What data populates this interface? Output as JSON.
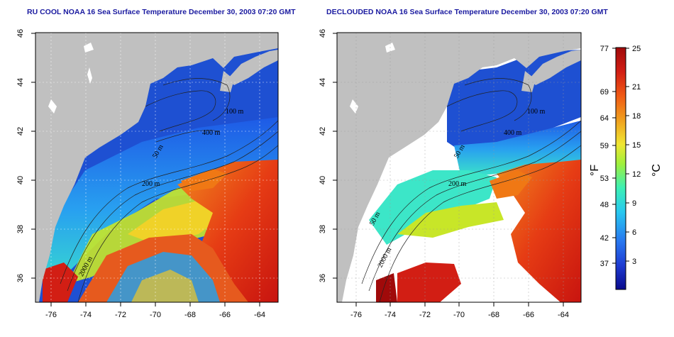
{
  "maps": [
    {
      "title": "RU COOL NOAA 16 Sea Surface Temperature December 30, 2003 07:20 GMT",
      "lat_ticks": [
        "36",
        "38",
        "40",
        "42",
        "44",
        "46"
      ],
      "lon_ticks": [
        "-76",
        "-74",
        "-72",
        "-70",
        "-68",
        "-66",
        "-64"
      ],
      "contour_labels": [
        "100 m",
        "400 m",
        "50 m",
        "200 m",
        "2000 m"
      ]
    },
    {
      "title": "DECLOUDED NOAA 16 Sea Surface Temperature December 30, 2003 07:20 GMT",
      "lat_ticks": [
        "36",
        "38",
        "40",
        "42",
        "44",
        "46"
      ],
      "lon_ticks": [
        "-76",
        "-74",
        "-72",
        "-70",
        "-68",
        "-66",
        "-64"
      ],
      "contour_labels": [
        "100 m",
        "400 m",
        "50 m",
        "200 m",
        "50 m",
        "2000 m"
      ]
    }
  ],
  "colorbar": {
    "fahrenheit_ticks": [
      "77",
      "69",
      "64",
      "59",
      "53",
      "48",
      "42",
      "37"
    ],
    "celsius_ticks": [
      "25",
      "21",
      "18",
      "15",
      "12",
      "9",
      "6",
      "3"
    ],
    "fahrenheit_label": "°F",
    "celsius_label": "°C",
    "range_c": [
      0,
      25
    ],
    "colors": [
      "#0a0a8c",
      "#1e3cd2",
      "#2878f0",
      "#28c8f0",
      "#3cf0b4",
      "#a0f03c",
      "#f0e632",
      "#f0a01e",
      "#f05a14",
      "#d21e14",
      "#a00a0a"
    ]
  },
  "colors": {
    "land": "#c0c0c0",
    "cloud": "#ffffff",
    "title": "#1a1aa0"
  }
}
